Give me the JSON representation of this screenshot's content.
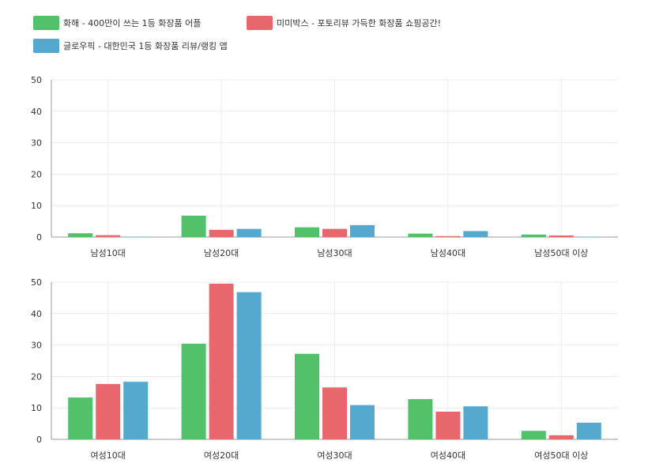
{
  "colors": {
    "s0": "#53c16a",
    "s1": "#e8676d",
    "s2": "#55a9cf",
    "grid": "#ececec",
    "axis": "#999999"
  },
  "legend": [
    {
      "label": "화해 - 400만이 쓰는 1등 화장품 어플",
      "color": "#53c16a"
    },
    {
      "label": "미미박스 - 포토리뷰 가득한 화장품 쇼핑공간!",
      "color": "#e8676d"
    },
    {
      "label": "글로우픽 - 대한민국 1등 화장품 리뷰/랭킹 앱",
      "color": "#55a9cf"
    }
  ],
  "chart_data": [
    {
      "type": "bar",
      "categories": [
        "남성10대",
        "남성20대",
        "남성30대",
        "남성40대",
        "남성50대 이상"
      ],
      "series": [
        {
          "name": "화해 - 400만이 쓰는 1등 화장품 어플",
          "values": [
            1.2,
            6.8,
            3.1,
            1.1,
            0.8
          ]
        },
        {
          "name": "미미박스 - 포토리뷰 가득한 화장품 쇼핑공간!",
          "values": [
            0.6,
            2.3,
            2.6,
            0.3,
            0.5
          ]
        },
        {
          "name": "글로우픽 - 대한민국 1등 화장품 리뷰/랭킹 앱",
          "values": [
            0.1,
            2.6,
            3.8,
            1.9,
            0.1
          ]
        }
      ],
      "yticks": [
        "0",
        "10",
        "20",
        "30",
        "40",
        "50"
      ],
      "ylim": [
        0,
        50
      ],
      "grid": true,
      "legend": "top-left"
    },
    {
      "type": "bar",
      "categories": [
        "여성10대",
        "여성20대",
        "여성30대",
        "여성40대",
        "여성50대 이상"
      ],
      "series": [
        {
          "name": "화해 - 400만이 쓰는 1등 화장품 어플",
          "values": [
            13.3,
            30.4,
            27.2,
            12.8,
            2.7
          ]
        },
        {
          "name": "미미박스 - 포토리뷰 가득한 화장품 쇼핑공간!",
          "values": [
            17.6,
            49.5,
            16.5,
            8.8,
            1.3
          ]
        },
        {
          "name": "글로우픽 - 대한민국 1등 화장품 리뷰/랭킹 앱",
          "values": [
            18.3,
            46.8,
            10.9,
            10.5,
            5.3
          ]
        }
      ],
      "yticks": [
        "0",
        "10",
        "20",
        "30",
        "40",
        "50"
      ],
      "ylim": [
        0,
        50
      ],
      "grid": true,
      "legend": "top-left"
    }
  ]
}
